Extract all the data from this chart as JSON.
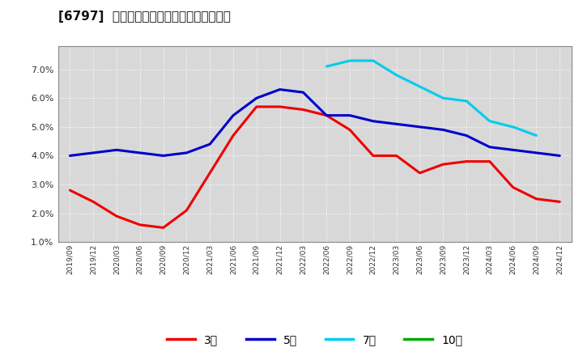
{
  "title": "[6797]  経常利益マージンの標準偏差の推移",
  "background_color": "#ffffff",
  "plot_bg_color": "#d8d8d8",
  "grid_color": "#ffffff",
  "ylim": [
    0.01,
    0.078
  ],
  "yticks": [
    0.01,
    0.02,
    0.03,
    0.04,
    0.05,
    0.06,
    0.07
  ],
  "legend": [
    {
      "label": "3年",
      "color": "#ee0000"
    },
    {
      "label": "5年",
      "color": "#0000cc"
    },
    {
      "label": "7年",
      "color": "#00ccee"
    },
    {
      "label": "10年",
      "color": "#00aa00"
    }
  ],
  "x_labels": [
    "2019/09",
    "2019/12",
    "2020/03",
    "2020/06",
    "2020/09",
    "2020/12",
    "2021/03",
    "2021/06",
    "2021/09",
    "2021/12",
    "2022/03",
    "2022/06",
    "2022/09",
    "2022/12",
    "2023/03",
    "2023/06",
    "2023/09",
    "2023/12",
    "2024/03",
    "2024/06",
    "2024/09",
    "2024/12"
  ],
  "series_3y": [
    0.028,
    0.024,
    0.019,
    0.016,
    0.015,
    0.021,
    0.034,
    0.047,
    0.057,
    0.057,
    0.056,
    0.054,
    0.049,
    0.04,
    0.04,
    0.034,
    0.037,
    0.038,
    0.038,
    0.029,
    0.025,
    0.024
  ],
  "series_5y": [
    0.04,
    0.041,
    0.042,
    0.041,
    0.04,
    0.041,
    0.044,
    0.054,
    0.06,
    0.063,
    0.062,
    0.054,
    0.054,
    0.052,
    0.051,
    0.05,
    0.049,
    0.047,
    0.043,
    0.042,
    0.041,
    0.04
  ],
  "series_7y": [
    null,
    null,
    null,
    null,
    null,
    null,
    null,
    null,
    null,
    null,
    null,
    0.071,
    0.073,
    0.073,
    0.068,
    0.064,
    0.06,
    0.059,
    0.052,
    0.05,
    0.047,
    null
  ],
  "series_10y": [
    null,
    null,
    null,
    null,
    null,
    null,
    null,
    null,
    null,
    null,
    null,
    null,
    null,
    null,
    null,
    null,
    null,
    null,
    null,
    null,
    null,
    null
  ]
}
